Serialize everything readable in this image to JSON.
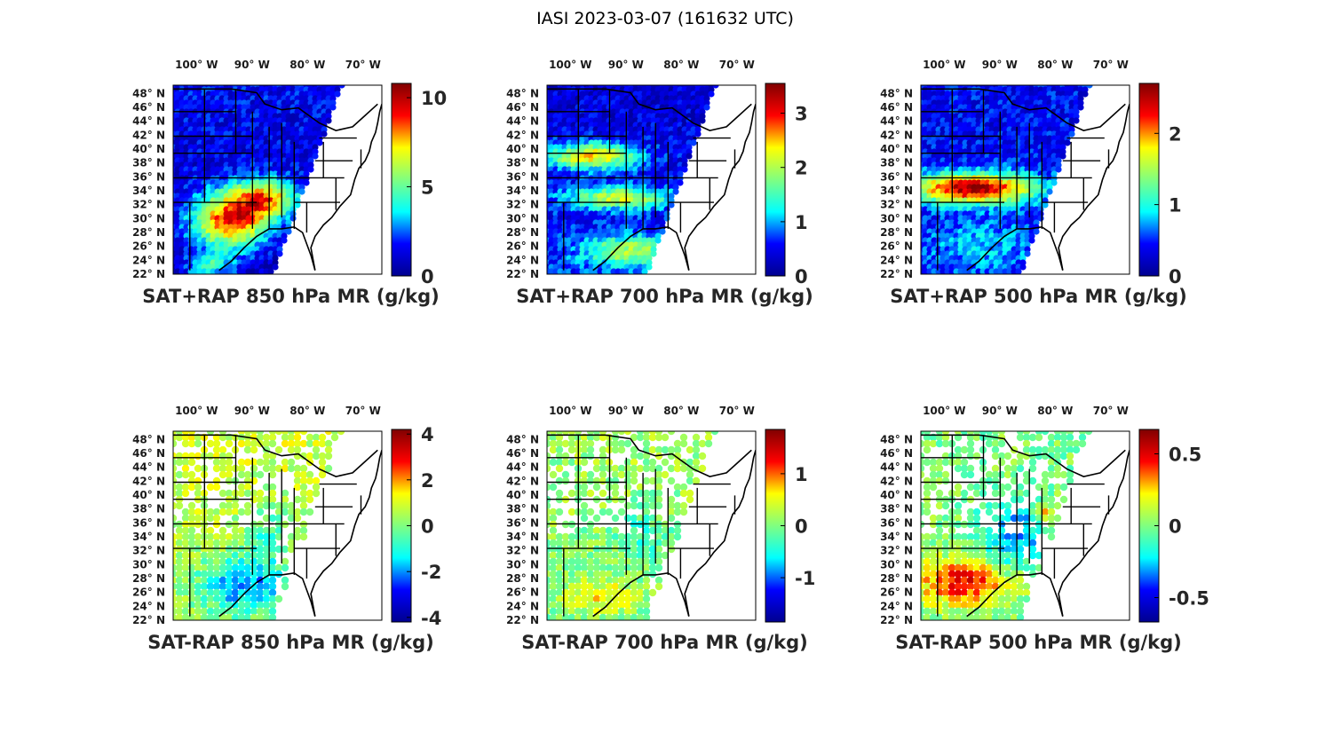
{
  "figure": {
    "title": "IASI 2023-03-07 (161632 UTC)",
    "lon_labels": [
      "100",
      "90",
      "80",
      "70"
    ],
    "lon_hemisphere": "W",
    "lat_labels": [
      "48",
      "46",
      "44",
      "42",
      "40",
      "38",
      "36",
      "34",
      "32",
      "30",
      "28",
      "26",
      "24",
      "22"
    ],
    "lat_hemisphere": "N",
    "degree_symbol": "°",
    "colormap": "jet",
    "jet_colors": [
      "#00008f",
      "#0000ff",
      "#00ffff",
      "#80ff80",
      "#ffff00",
      "#ff0000",
      "#800000"
    ]
  },
  "panels": [
    {
      "title": "SAT+RAP 850 hPa MR (g/kg)",
      "clim": [
        0,
        10.8
      ],
      "colorbar_ticks": [
        "10",
        "5",
        "0"
      ]
    },
    {
      "title": "SAT+RAP 700 hPa MR (g/kg)",
      "clim": [
        0,
        3.55
      ],
      "colorbar_ticks": [
        "3",
        "2",
        "1",
        "0"
      ]
    },
    {
      "title": "SAT+RAP 500 hPa MR (g/kg)",
      "clim": [
        0,
        2.7
      ],
      "colorbar_ticks": [
        "2",
        "1",
        "0"
      ]
    },
    {
      "title": "SAT-RAP 850 hPa MR (g/kg)",
      "clim": [
        -4.2,
        4.2
      ],
      "colorbar_ticks": [
        "4",
        "2",
        "0",
        "-2",
        "-4"
      ]
    },
    {
      "title": "SAT-RAP 700 hPa MR (g/kg)",
      "clim": [
        -1.85,
        1.85
      ],
      "colorbar_ticks": [
        "1",
        "0",
        "-1"
      ]
    },
    {
      "title": "SAT-RAP 500 hPa MR (g/kg)",
      "clim": [
        -0.67,
        0.67
      ],
      "colorbar_ticks": [
        "0.5",
        "0",
        "-0.5"
      ]
    }
  ]
}
